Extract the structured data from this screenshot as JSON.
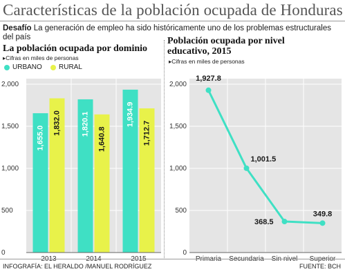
{
  "header": {
    "title": "Características de la población ocupada de Honduras",
    "intro_bold": "Desafío",
    "intro_text": " La generación de empleo ha sido históricamente uno de los problemas estructurales del país"
  },
  "left_chart": {
    "title": "La población ocupada por dominio",
    "subtitle": "Cifras en miles de personas",
    "subtitle_marker": "▸"
  },
  "right_chart": {
    "title": "Población ocupada por nivel educativo, 2015",
    "subtitle": "Cifras en miles de personas",
    "subtitle_marker": "▸"
  },
  "footer": {
    "credit": "INFOGRAFÍA: EL HERALDO /MANUEL RODRÍGUEZ",
    "source": "FUENTE: BCH"
  },
  "colors": {
    "urbano": "#3fe0c4",
    "rural": "#e8f24a",
    "line": "#3fe0c4",
    "plot_bg": "#e5e5e5"
  },
  "chart_data": [
    {
      "type": "bar",
      "title": "La población ocupada por dominio",
      "categories": [
        "2013",
        "2014",
        "2015"
      ],
      "series": [
        {
          "name": "URBANO",
          "values": [
            1655.0,
            1820.1,
            1934.9
          ],
          "labels": [
            "1,655.0",
            "1,820.1",
            "1,934.9"
          ]
        },
        {
          "name": "RURAL",
          "values": [
            1832.0,
            1640.8,
            1712.7
          ],
          "labels": [
            "1,832.0",
            "1,640.8",
            "1,712.7"
          ]
        }
      ],
      "ylim": [
        0,
        2000
      ],
      "yticks": [
        0,
        500,
        1000,
        1500,
        2000
      ],
      "ytick_labels": [
        "0",
        "500",
        "1,000",
        "1,500",
        "2,000"
      ],
      "legend": "top-left",
      "grid": true
    },
    {
      "type": "line",
      "title": "Población ocupada por nivel educativo, 2015",
      "categories": [
        "Primaria",
        "Secundaria",
        "Sin nivel",
        "Superior"
      ],
      "values": [
        1927.8,
        1001.5,
        368.5,
        349.8
      ],
      "labels": [
        "1,927.8",
        "1,001.5",
        "368.5",
        "349.8"
      ],
      "ylim": [
        0,
        2000
      ],
      "yticks": [
        0,
        500,
        1000,
        1500,
        2000
      ],
      "ytick_labels": [
        "0",
        "500",
        "1,000",
        "1,500",
        "2,000"
      ],
      "grid": true
    }
  ]
}
